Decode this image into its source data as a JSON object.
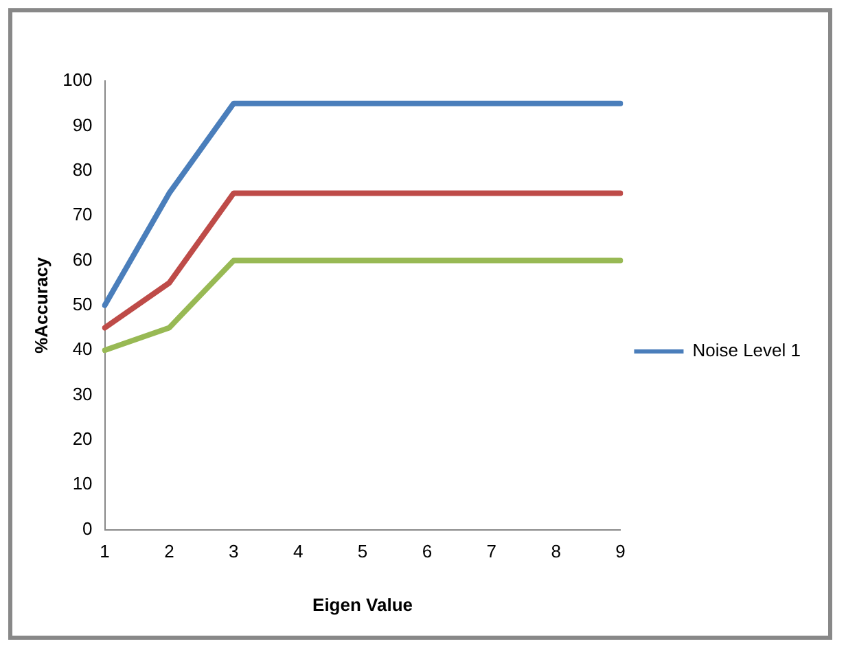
{
  "chart_data": {
    "type": "line",
    "xlabel": "Eigen Value",
    "ylabel": "%Accuracy",
    "categories": [
      "1",
      "2",
      "3",
      "4",
      "5",
      "6",
      "7",
      "8",
      "9"
    ],
    "series": [
      {
        "name": "Noise Level 1",
        "color": "#4a7ebb",
        "values": [
          50,
          75,
          95,
          95,
          95,
          95,
          95,
          95,
          95
        ]
      },
      {
        "color": "#be4b48",
        "values": [
          45,
          55,
          75,
          75,
          75,
          75,
          75,
          75,
          75
        ]
      },
      {
        "color": "#98b954",
        "values": [
          40,
          45,
          60,
          60,
          60,
          60,
          60,
          60,
          60
        ]
      }
    ],
    "ylim": [
      0,
      100
    ],
    "yticks": [
      0,
      10,
      20,
      30,
      40,
      50,
      60,
      70,
      80,
      90,
      100
    ],
    "grid": false,
    "legend": "right",
    "marker": "none"
  }
}
